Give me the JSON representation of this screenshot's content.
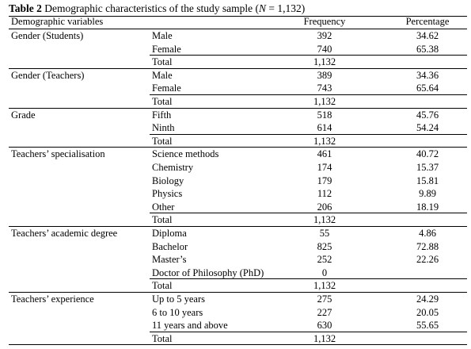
{
  "caption": {
    "label": "Table 2",
    "text_before": "Demographic characteristics of the study sample (",
    "n_symbol": "N",
    "text_after": " = 1,132)"
  },
  "headers": {
    "variable": "Demographic variables",
    "frequency": "Frequency",
    "percentage": "Percentage"
  },
  "groups": [
    {
      "name": "Gender (Students)",
      "rows": [
        {
          "category": "Male",
          "frequency": "392",
          "percentage": "34.62"
        },
        {
          "category": "Female",
          "frequency": "740",
          "percentage": "65.38"
        }
      ],
      "total_label": "Total",
      "total_frequency": "1,132"
    },
    {
      "name": "Gender (Teachers)",
      "rows": [
        {
          "category": "Male",
          "frequency": "389",
          "percentage": "34.36"
        },
        {
          "category": "Female",
          "frequency": "743",
          "percentage": "65.64"
        }
      ],
      "total_label": "Total",
      "total_frequency": "1,132"
    },
    {
      "name": "Grade",
      "rows": [
        {
          "category": "Fifth",
          "frequency": "518",
          "percentage": "45.76"
        },
        {
          "category": "Ninth",
          "frequency": "614",
          "percentage": "54.24"
        }
      ],
      "total_label": "Total",
      "total_frequency": "1,132"
    },
    {
      "name": "Teachers’ specialisation",
      "rows": [
        {
          "category": "Science methods",
          "frequency": "461",
          "percentage": "40.72"
        },
        {
          "category": "Chemistry",
          "frequency": "174",
          "percentage": "15.37"
        },
        {
          "category": "Biology",
          "frequency": "179",
          "percentage": "15.81"
        },
        {
          "category": "Physics",
          "frequency": "112",
          "percentage": "9.89"
        },
        {
          "category": "Other",
          "frequency": "206",
          "percentage": "18.19"
        }
      ],
      "total_label": "Total",
      "total_frequency": "1,132"
    },
    {
      "name": "Teachers’ academic degree",
      "rows": [
        {
          "category": "Diploma",
          "frequency": "55",
          "percentage": "4.86"
        },
        {
          "category": "Bachelor",
          "frequency": "825",
          "percentage": "72.88"
        },
        {
          "category": "Master’s",
          "frequency": "252",
          "percentage": "22.26"
        },
        {
          "category": "Doctor of Philosophy (PhD)",
          "frequency": "0",
          "percentage": ""
        }
      ],
      "total_label": "Total",
      "total_frequency": "1,132"
    },
    {
      "name": "Teachers’ experience",
      "rows": [
        {
          "category": "Up to 5 years",
          "frequency": "275",
          "percentage": "24.29"
        },
        {
          "category": "6 to 10 years",
          "frequency": "227",
          "percentage": "20.05"
        },
        {
          "category": "11 years and above",
          "frequency": "630",
          "percentage": "55.65"
        }
      ],
      "total_label": "Total",
      "total_frequency": "1,132"
    }
  ]
}
